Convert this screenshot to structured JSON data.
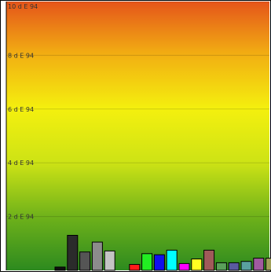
{
  "chart_data": {
    "type": "bar",
    "background": {
      "style": "vertical-gradient",
      "colors": [
        "#2d8a1f",
        "#6fb21a",
        "#cde315",
        "#f4f00e",
        "#f2b012",
        "#e5551a"
      ]
    },
    "ylim": [
      0,
      10
    ],
    "yticks": [
      2,
      4,
      6,
      8,
      10
    ],
    "yticklabels": [
      "2 d E 94",
      "4 d E 94",
      "6 d E 94",
      "8 d E 94",
      "10 d E 94"
    ],
    "grid": true,
    "legend": "none",
    "title": "",
    "xlabel": "",
    "ylabel": "",
    "values": [
      0.12,
      1.3,
      0.68,
      1.05,
      0.72,
      0.0,
      0.22,
      0.62,
      0.58,
      0.75,
      0.25,
      0.42,
      0.75,
      0.28,
      0.28,
      0.33,
      0.45,
      0.45
    ],
    "colors": [
      "#111111",
      "#2b2b2b",
      "#555555",
      "#8c8c8c",
      "#c4c4c4",
      "#ffffff",
      "#ff1a1a",
      "#22ee22",
      "#1010ee",
      "#00ffff",
      "#ff00ff",
      "#ffff22",
      "#a05a5a",
      "#5aa05a",
      "#5a5aa0",
      "#5aa0a0",
      "#a05aa0",
      "#a0a05a"
    ]
  }
}
